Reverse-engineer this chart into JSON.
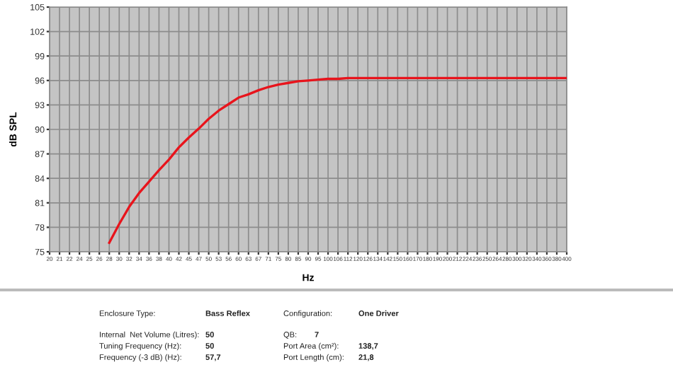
{
  "chart_data": {
    "type": "line",
    "xlabel": "Hz",
    "ylabel": "dB SPL",
    "categories": [
      "20",
      "21",
      "22",
      "24",
      "25",
      "26",
      "28",
      "30",
      "32",
      "34",
      "36",
      "38",
      "40",
      "42",
      "45",
      "47",
      "50",
      "53",
      "56",
      "60",
      "63",
      "67",
      "71",
      "75",
      "80",
      "85",
      "90",
      "95",
      "100",
      "106",
      "112",
      "120",
      "126",
      "134",
      "142",
      "150",
      "160",
      "170",
      "180",
      "190",
      "200",
      "212",
      "224",
      "236",
      "250",
      "264",
      "280",
      "300",
      "320",
      "340",
      "360",
      "380",
      "400"
    ],
    "series": [
      {
        "color": "#e8141c",
        "values": [
          null,
          null,
          null,
          null,
          null,
          null,
          76.1,
          78.4,
          80.5,
          82.2,
          83.6,
          85.0,
          86.3,
          87.8,
          89.0,
          90.1,
          91.3,
          92.3,
          93.1,
          93.9,
          94.3,
          94.8,
          95.2,
          95.5,
          95.7,
          95.9,
          96.0,
          96.1,
          96.2,
          96.2,
          96.3,
          96.3,
          96.3,
          96.3,
          96.3,
          96.3,
          96.3,
          96.3,
          96.3,
          96.3,
          96.3,
          96.3,
          96.3,
          96.3,
          96.3,
          96.3,
          96.3,
          96.3,
          96.3,
          96.3,
          96.3,
          96.3,
          96.3
        ]
      }
    ],
    "ylim": [
      75,
      105
    ],
    "yticks": [
      75,
      78,
      81,
      84,
      87,
      90,
      93,
      96,
      99,
      102,
      105
    ],
    "grid": true,
    "legend": false,
    "marker": "none",
    "line_style": "solid",
    "annotations": [
      "Enclosure Type:",
      "Bass Reflex",
      "Configuration:",
      "One Driver",
      "Internal  Net Volume (Litres):",
      "50",
      "QB:",
      "7",
      "Tuning Frequency (Hz):",
      "50",
      "Port Area (cm²):",
      "138,7",
      "Frequency (-3 dB) (Hz):",
      "57,7",
      "Port Length (cm):",
      "21,8"
    ]
  }
}
